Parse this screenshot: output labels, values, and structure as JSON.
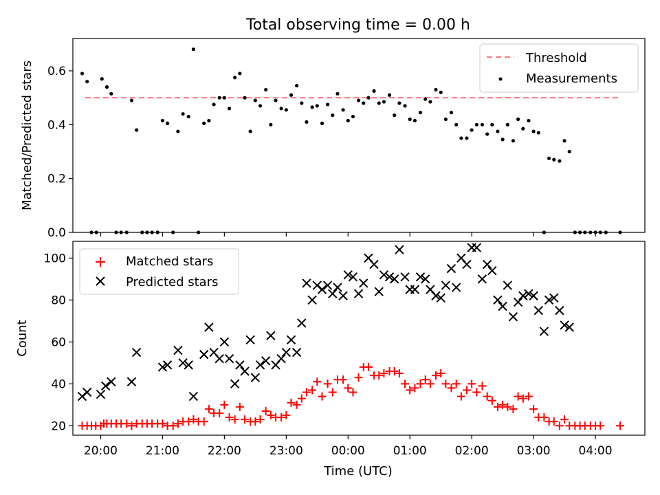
{
  "chart_data": [
    {
      "type": "scatter",
      "title": "Total observing time = 0.00 h",
      "ylabel": "Matched/Predicted stars",
      "ylim": [
        0,
        0.72
      ],
      "yticks": [
        0.0,
        0.2,
        0.4,
        0.6
      ],
      "ytick_labels": [
        "0.0",
        "0.2",
        "0.4",
        "0.6"
      ],
      "xlim": [
        19.55,
        28.8
      ],
      "threshold": {
        "name": "Threshold",
        "value": 0.5,
        "x_start": 19.75,
        "x_end": 28.4,
        "color": "#ff7777"
      },
      "legend": {
        "position": "top-right",
        "entries": [
          "Threshold",
          "Measurements"
        ]
      },
      "series": [
        {
          "name": "Measurements",
          "color": "#000000",
          "x": [
            19.7,
            19.78,
            19.85,
            19.93,
            20.02,
            20.1,
            20.17,
            20.25,
            20.33,
            20.42,
            20.5,
            20.58,
            20.67,
            20.75,
            20.83,
            20.92,
            21.0,
            21.08,
            21.17,
            21.25,
            21.33,
            21.42,
            21.5,
            21.58,
            21.67,
            21.75,
            21.83,
            21.92,
            22.0,
            22.08,
            22.17,
            22.25,
            22.33,
            22.42,
            22.5,
            22.58,
            22.67,
            22.75,
            22.83,
            22.92,
            23.0,
            23.08,
            23.17,
            23.25,
            23.33,
            23.42,
            23.5,
            23.58,
            23.67,
            23.75,
            23.83,
            23.92,
            24.0,
            24.08,
            24.17,
            24.25,
            24.33,
            24.42,
            24.5,
            24.58,
            24.67,
            24.75,
            24.83,
            24.92,
            25.0,
            25.08,
            25.17,
            25.25,
            25.33,
            25.42,
            25.5,
            25.58,
            25.67,
            25.75,
            25.83,
            25.92,
            26.0,
            26.08,
            26.17,
            26.25,
            26.33,
            26.42,
            26.5,
            26.58,
            26.67,
            26.75,
            26.83,
            26.92,
            27.0,
            27.08,
            27.17,
            27.25,
            27.33,
            27.42,
            27.5,
            27.58,
            27.67,
            27.75,
            27.83,
            27.92,
            28.0,
            28.08,
            28.17,
            28.4
          ],
          "y": [
            0.59,
            0.56,
            0.0,
            0.0,
            0.57,
            0.54,
            0.515,
            0.0,
            0.0,
            0.0,
            0.49,
            0.38,
            0.0,
            0.0,
            0.0,
            0.0,
            0.415,
            0.405,
            0.0,
            0.375,
            0.44,
            0.43,
            0.68,
            0.0,
            0.405,
            0.415,
            0.475,
            0.5,
            0.5,
            0.46,
            0.575,
            0.59,
            0.5,
            0.375,
            0.49,
            0.47,
            0.53,
            0.4,
            0.49,
            0.46,
            0.455,
            0.51,
            0.545,
            0.48,
            0.41,
            0.465,
            0.47,
            0.405,
            0.475,
            0.435,
            0.515,
            0.455,
            0.415,
            0.43,
            0.49,
            0.48,
            0.5,
            0.525,
            0.48,
            0.485,
            0.51,
            0.435,
            0.48,
            0.47,
            0.42,
            0.415,
            0.445,
            0.495,
            0.485,
            0.53,
            0.52,
            0.42,
            0.445,
            0.4,
            0.35,
            0.35,
            0.38,
            0.4,
            0.4,
            0.365,
            0.4,
            0.375,
            0.345,
            0.4,
            0.34,
            0.42,
            0.385,
            0.415,
            0.375,
            0.37,
            0.0,
            0.275,
            0.27,
            0.265,
            0.34,
            0.3,
            0.0,
            0.0,
            0.0,
            0.0,
            0.0,
            0.0,
            0.0,
            0.0
          ]
        }
      ]
    },
    {
      "type": "scatter",
      "xlabel": "Time (UTC)",
      "ylabel": "Count",
      "ylim": [
        15.5,
        108
      ],
      "yticks": [
        20,
        40,
        60,
        80,
        100
      ],
      "ytick_labels": [
        "20",
        "40",
        "60",
        "80",
        "100"
      ],
      "xlim": [
        19.55,
        28.8
      ],
      "xticks": [
        20,
        21,
        22,
        23,
        24,
        25,
        26,
        27,
        28
      ],
      "xtick_labels": [
        "20:00",
        "21:00",
        "22:00",
        "23:00",
        "00:00",
        "01:00",
        "02:00",
        "03:00",
        "04:00"
      ],
      "legend": {
        "position": "top-left",
        "entries": [
          "Matched stars",
          "Predicted stars"
        ]
      },
      "series": [
        {
          "name": "Matched stars",
          "marker": "plus",
          "color": "#ff0000",
          "x": [
            19.7,
            19.78,
            19.85,
            19.92,
            20.0,
            20.05,
            20.1,
            20.17,
            20.25,
            20.33,
            20.42,
            20.5,
            20.58,
            20.67,
            20.75,
            20.83,
            20.92,
            21.0,
            21.08,
            21.17,
            21.25,
            21.33,
            21.42,
            21.5,
            21.58,
            21.67,
            21.75,
            21.83,
            21.92,
            22.0,
            22.08,
            22.17,
            22.25,
            22.33,
            22.42,
            22.5,
            22.58,
            22.67,
            22.75,
            22.83,
            22.92,
            23.0,
            23.08,
            23.17,
            23.25,
            23.33,
            23.42,
            23.5,
            23.58,
            23.67,
            23.75,
            23.83,
            23.92,
            24.0,
            24.08,
            24.17,
            24.25,
            24.33,
            24.42,
            24.5,
            24.58,
            24.67,
            24.75,
            24.83,
            24.92,
            25.0,
            25.08,
            25.17,
            25.25,
            25.33,
            25.42,
            25.5,
            25.58,
            25.67,
            25.75,
            25.83,
            25.92,
            26.0,
            26.08,
            26.17,
            26.25,
            26.33,
            26.42,
            26.5,
            26.58,
            26.67,
            26.75,
            26.83,
            26.92,
            27.0,
            27.08,
            27.17,
            27.25,
            27.33,
            27.42,
            27.5,
            27.58,
            27.67,
            27.75,
            27.83,
            27.92,
            28.0,
            28.08,
            28.4
          ],
          "y": [
            20,
            20,
            20,
            20,
            20,
            21,
            21,
            21,
            21,
            21,
            21,
            20,
            21,
            21,
            21,
            21,
            21,
            21,
            20,
            20,
            21,
            22,
            22,
            23,
            22,
            22,
            28,
            26,
            26,
            30,
            24,
            23,
            29,
            23,
            22,
            22,
            23,
            27,
            25,
            24,
            24,
            25,
            31,
            30,
            33,
            36,
            37,
            41,
            34,
            40,
            36,
            42,
            42,
            38,
            36,
            43,
            48,
            48,
            44,
            44,
            45,
            46,
            46,
            45,
            40,
            37,
            38,
            40,
            42,
            40,
            44,
            45,
            40,
            38,
            40,
            34,
            37,
            40,
            36,
            39,
            34,
            32,
            29,
            30,
            29,
            28,
            34,
            33,
            34,
            28,
            24,
            24,
            22,
            22,
            20,
            23,
            20,
            20,
            20,
            20,
            20,
            20,
            20,
            20
          ]
        },
        {
          "name": "Predicted stars",
          "marker": "x",
          "color": "#000000",
          "x": [
            19.7,
            19.78,
            20.0,
            20.08,
            20.17,
            20.5,
            20.58,
            21.0,
            21.08,
            21.25,
            21.33,
            21.42,
            21.5,
            21.67,
            21.75,
            21.83,
            21.92,
            22.0,
            22.08,
            22.17,
            22.25,
            22.33,
            22.42,
            22.5,
            22.58,
            22.67,
            22.75,
            22.83,
            22.92,
            23.0,
            23.08,
            23.17,
            23.25,
            23.33,
            23.42,
            23.5,
            23.58,
            23.67,
            23.75,
            23.83,
            23.92,
            24.0,
            24.08,
            24.17,
            24.25,
            24.33,
            24.42,
            24.5,
            24.58,
            24.67,
            24.75,
            24.83,
            24.92,
            25.0,
            25.08,
            25.17,
            25.25,
            25.33,
            25.42,
            25.5,
            25.58,
            25.67,
            25.75,
            25.83,
            25.92,
            26.0,
            26.08,
            26.17,
            26.25,
            26.33,
            26.42,
            26.5,
            26.58,
            26.67,
            26.75,
            26.83,
            26.92,
            27.0,
            27.08,
            27.17,
            27.25,
            27.33,
            27.42,
            27.5,
            27.58
          ],
          "y": [
            34,
            36,
            35,
            39,
            41,
            41,
            55,
            48,
            49,
            56,
            50,
            49,
            34,
            54,
            67,
            55,
            52,
            60,
            52,
            40,
            49,
            46,
            61,
            43,
            49,
            51,
            63,
            49,
            52,
            55,
            61,
            55,
            69,
            88,
            80,
            87,
            85,
            87,
            83,
            86,
            82,
            92,
            91,
            83,
            88,
            100,
            97,
            84,
            92,
            91,
            90,
            104,
            91,
            85,
            85,
            91,
            90,
            85,
            82,
            81,
            87,
            95,
            86,
            100,
            97,
            105,
            105,
            90,
            97,
            94,
            80,
            77,
            87,
            72,
            79,
            82,
            83,
            82,
            75,
            65,
            80,
            81,
            75,
            68,
            67
          ]
        }
      ]
    }
  ]
}
